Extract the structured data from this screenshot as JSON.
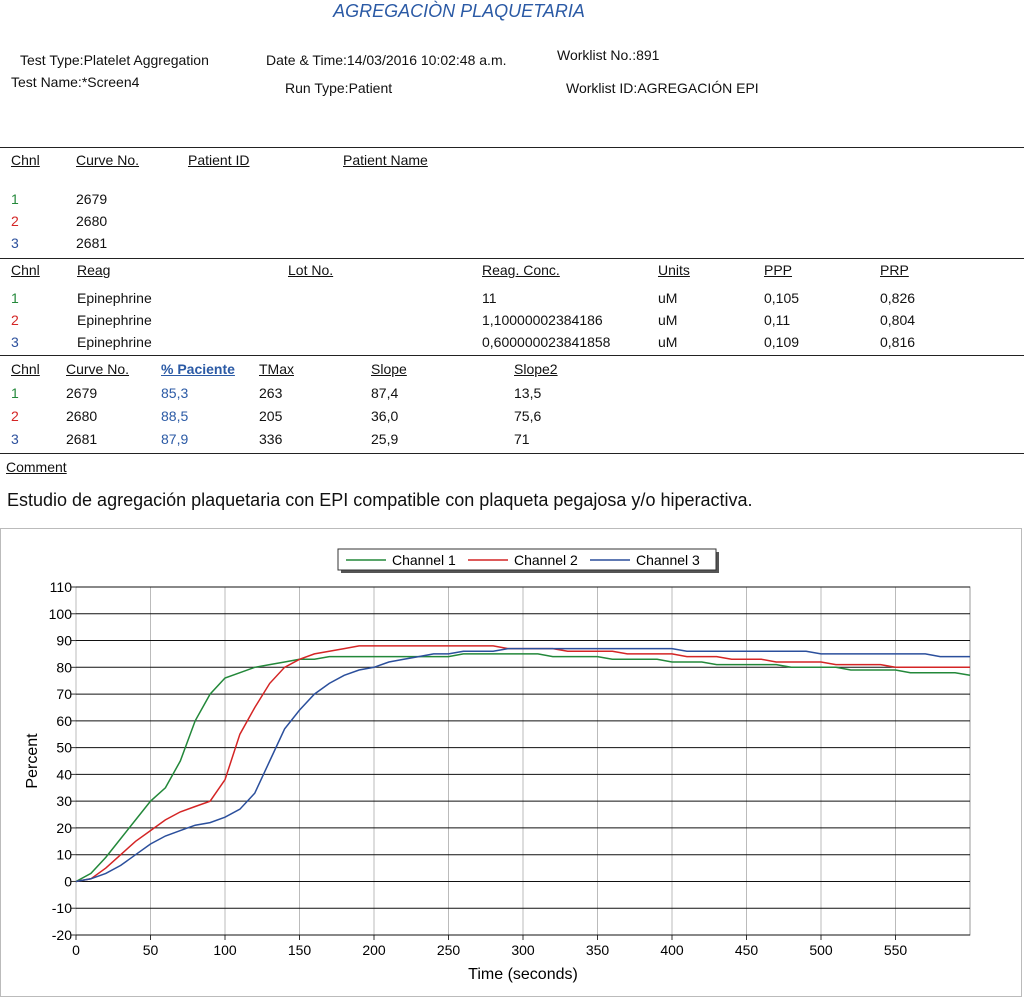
{
  "header": {
    "title": "AGREGACIÒN PLAQUETARIA",
    "fields": [
      {
        "label": "Test Type:",
        "value": "Platelet Aggregation"
      },
      {
        "label": "Date & Time:",
        "value": "14/03/2016 10:02:48 a.m."
      },
      {
        "label": "Worklist No.:",
        "value": "891"
      },
      {
        "label": "Test Name:",
        "value": "*Screen4"
      },
      {
        "label": "Run Type:",
        "value": "Patient"
      },
      {
        "label": "Worklist ID:",
        "value": "AGREGACIÓN EPI"
      }
    ]
  },
  "tables": [
    {
      "headers": [
        "Chnl",
        "Curve No.",
        "Patient ID",
        "Patient Name"
      ],
      "rows": [
        [
          "1",
          "2679"
        ],
        [
          "2",
          "2680"
        ],
        [
          "3",
          "2681"
        ]
      ]
    },
    {
      "headers": [
        "Chnl",
        "Reag",
        "Lot No.",
        "Reag. Conc.",
        "Units",
        "PPP",
        "PRP"
      ],
      "rows": [
        [
          "1",
          "Epinephrine",
          "11",
          "uM",
          "0,105",
          "0,826"
        ],
        [
          "2",
          "Epinephrine",
          "1,10000002384186",
          "uM",
          "0,11",
          "0,804"
        ],
        [
          "3",
          "Epinephrine",
          "0,600000023841858",
          "uM",
          "0,109",
          "0,816"
        ]
      ]
    },
    {
      "headers": [
        "Chnl",
        "Curve No.",
        "% Paciente",
        "TMax",
        "Slope",
        "Slope2"
      ],
      "rows": [
        [
          "1",
          "2679",
          "85,3",
          "263",
          "87,4",
          "13,5"
        ],
        [
          "2",
          "2680",
          "88,5",
          "205",
          "36,0",
          "75,6"
        ],
        [
          "3",
          "2681",
          "87,9",
          "336",
          "25,9",
          "71"
        ]
      ]
    }
  ],
  "comment": {
    "label": "Comment",
    "text": "Estudio de agregación plaquetaria con EPI compatible con plaqueta pegajosa y/o hiperactiva."
  },
  "chart_data": {
    "type": "line",
    "x_label": "Time (seconds)",
    "y_label": "Percent",
    "x": [
      0,
      10,
      20,
      30,
      40,
      50,
      60,
      70,
      80,
      90,
      100,
      110,
      120,
      130,
      140,
      150,
      160,
      170,
      180,
      190,
      200,
      210,
      220,
      230,
      240,
      250,
      260,
      270,
      280,
      290,
      300,
      310,
      320,
      330,
      340,
      350,
      360,
      370,
      380,
      390,
      400,
      410,
      420,
      430,
      440,
      450,
      460,
      470,
      480,
      490,
      500,
      510,
      520,
      530,
      540,
      550,
      560,
      570,
      580,
      590,
      600
    ],
    "series": [
      {
        "name": "Channel 1",
        "color": "#23883a",
        "values": [
          0,
          3,
          9,
          16,
          23,
          30,
          35,
          45,
          60,
          70,
          76,
          78,
          80,
          81,
          82,
          83,
          83,
          84,
          84,
          84,
          84,
          84,
          84,
          84,
          84,
          84,
          85,
          85,
          85,
          85,
          85,
          85,
          84,
          84,
          84,
          84,
          83,
          83,
          83,
          83,
          82,
          82,
          82,
          81,
          81,
          81,
          81,
          81,
          80,
          80,
          80,
          80,
          79,
          79,
          79,
          79,
          78,
          78,
          78,
          78,
          77
        ]
      },
      {
        "name": "Channel 2",
        "color": "#d42525",
        "values": [
          0,
          1,
          5,
          10,
          15,
          19,
          23,
          26,
          28,
          30,
          38,
          55,
          65,
          74,
          80,
          83,
          85,
          86,
          87,
          88,
          88,
          88,
          88,
          88,
          88,
          88,
          88,
          88,
          88,
          87,
          87,
          87,
          87,
          86,
          86,
          86,
          86,
          85,
          85,
          85,
          85,
          84,
          84,
          84,
          83,
          83,
          83,
          82,
          82,
          82,
          82,
          81,
          81,
          81,
          81,
          80,
          80,
          80,
          80,
          80,
          80
        ]
      },
      {
        "name": "Channel 3",
        "color": "#2b4f9c",
        "values": [
          0,
          1,
          3,
          6,
          10,
          14,
          17,
          19,
          21,
          22,
          24,
          27,
          33,
          45,
          57,
          64,
          70,
          74,
          77,
          79,
          80,
          82,
          83,
          84,
          85,
          85,
          86,
          86,
          86,
          87,
          87,
          87,
          87,
          87,
          87,
          87,
          87,
          87,
          87,
          87,
          87,
          86,
          86,
          86,
          86,
          86,
          86,
          86,
          86,
          86,
          85,
          85,
          85,
          85,
          85,
          85,
          85,
          85,
          84,
          84,
          84
        ]
      }
    ],
    "xlim": [
      0,
      600
    ],
    "xticks": [
      0,
      50,
      100,
      150,
      200,
      250,
      300,
      350,
      400,
      450,
      500,
      550
    ],
    "ylim": [
      -20,
      110
    ],
    "yticks": [
      -20,
      -10,
      0,
      10,
      20,
      30,
      40,
      50,
      60,
      70,
      80,
      90,
      100,
      110
    ],
    "grid": true,
    "legend": "top"
  }
}
